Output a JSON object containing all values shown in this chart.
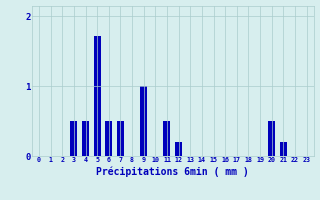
{
  "title": "",
  "xlabel": "Précipitations 6min ( mm )",
  "ylabel": "",
  "background_color": "#d7eeee",
  "bar_color": "#0000bb",
  "grid_color": "#aacccc",
  "text_color": "#0000bb",
  "ylim": [
    0,
    2.15
  ],
  "yticks": [
    0,
    1,
    2
  ],
  "num_hours": 24,
  "values": [
    0,
    0,
    0,
    0.5,
    0.5,
    1.72,
    0.5,
    0.5,
    0,
    1.0,
    0,
    0.5,
    0.2,
    0,
    0,
    0,
    0,
    0,
    0,
    0,
    0.5,
    0.2,
    0,
    0
  ]
}
